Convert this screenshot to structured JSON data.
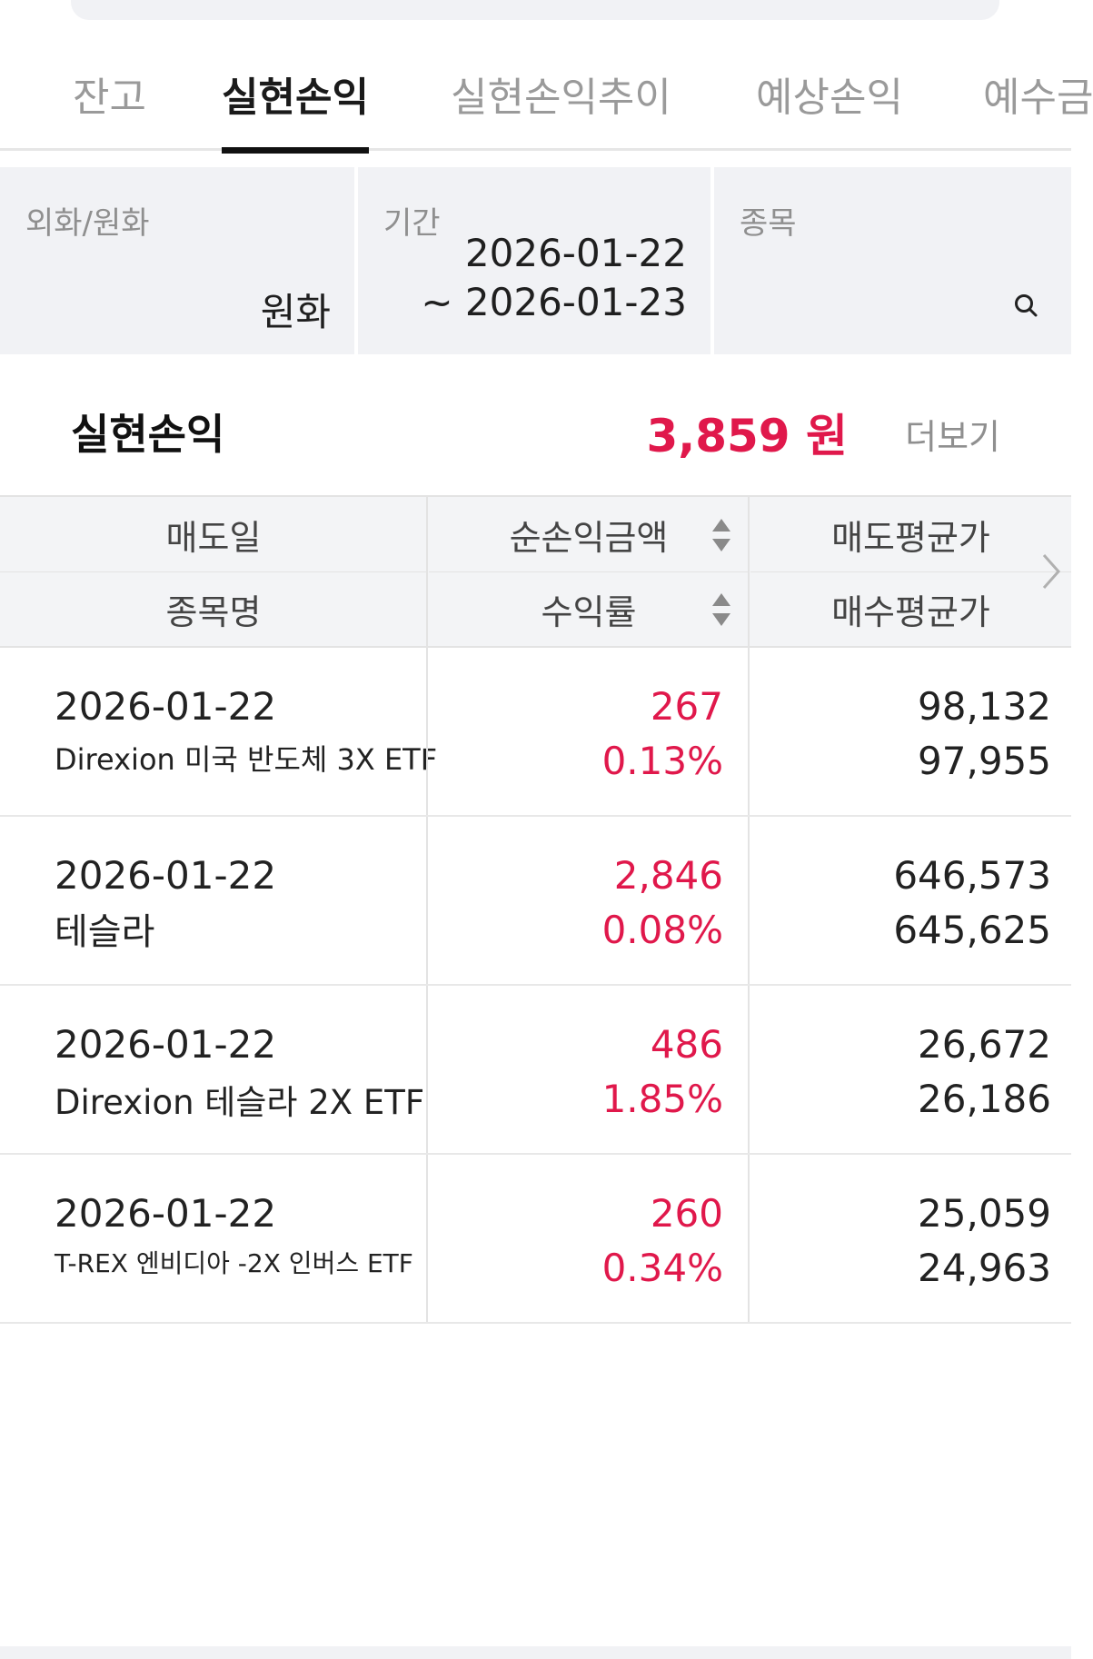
{
  "tabs": [
    {
      "label": "잔고",
      "active": false
    },
    {
      "label": "실현손익",
      "active": true
    },
    {
      "label": "실현손익추이",
      "active": false
    },
    {
      "label": "예상손익",
      "active": false
    },
    {
      "label": "예수금",
      "active": false
    }
  ],
  "filters": {
    "currency": {
      "label": "외화/원화",
      "value": "원화"
    },
    "period": {
      "label": "기간",
      "start": "2026-01-22",
      "end": "~ 2026-01-23"
    },
    "stock": {
      "label": "종목",
      "icon": "search-icon"
    }
  },
  "summary": {
    "title": "실현손익",
    "amount": "3,859 원",
    "more": "더보기"
  },
  "table": {
    "headers": {
      "sell_date": "매도일",
      "net_profit": "순손익금액",
      "sell_avg": "매도평균가",
      "stock_name": "종목명",
      "return_rate": "수익률",
      "buy_avg": "매수평균가"
    },
    "rows": [
      {
        "date": "2026-01-22",
        "name": "Direxion 미국 반도체 3X ETF",
        "profit": "267",
        "rate": "0.13%",
        "sell": "98,132",
        "buy": "97,955"
      },
      {
        "date": "2026-01-22",
        "name": "테슬라",
        "profit": "2,846",
        "rate": "0.08%",
        "sell": "646,573",
        "buy": "645,625"
      },
      {
        "date": "2026-01-22",
        "name": "Direxion 테슬라 2X ETF",
        "profit": "486",
        "rate": "1.85%",
        "sell": "26,672",
        "buy": "26,186"
      },
      {
        "date": "2026-01-22",
        "name": "T-REX 엔비디아 -2X 인버스 ETF",
        "profit": "260",
        "rate": "0.34%",
        "sell": "25,059",
        "buy": "24,963"
      }
    ]
  },
  "colors": {
    "accent_red": "#e0184b",
    "panel_bg": "#f1f2f5"
  }
}
